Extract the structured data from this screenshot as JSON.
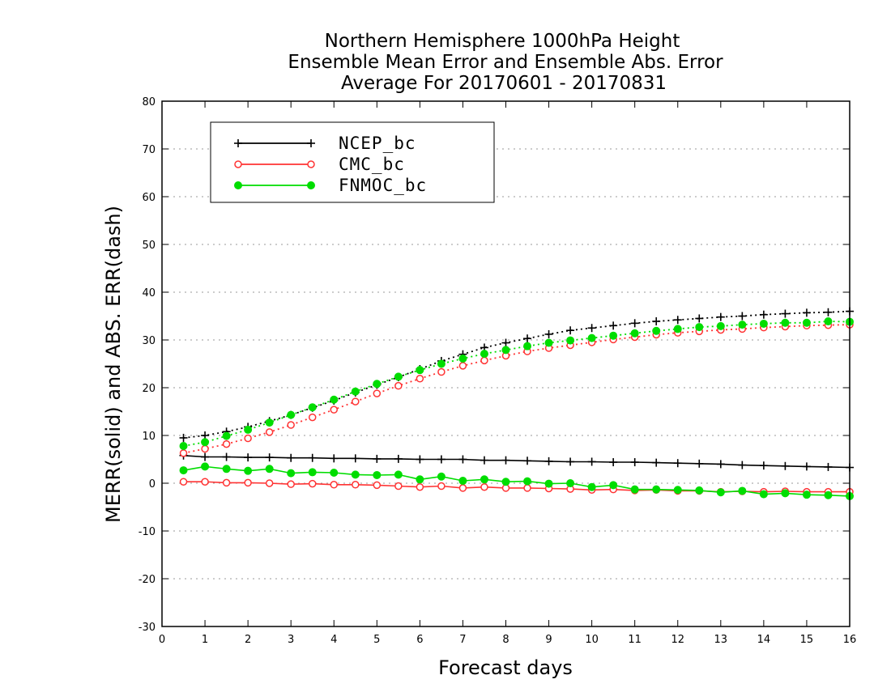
{
  "chart_data": {
    "type": "line",
    "title": [
      "Northern Hemisphere 1000hPa Height",
      "Ensemble Mean Error and Ensemble Abs. Error",
      "Average For 20170601 - 20170831"
    ],
    "xlabel": "Forecast days",
    "ylabel": "MERR(solid) and ABS. ERR(dash)",
    "xlim": [
      0,
      16
    ],
    "ylim": [
      -30,
      80
    ],
    "xticks": [
      "0",
      "1",
      "2",
      "3",
      "4",
      "5",
      "6",
      "7",
      "8",
      "9",
      "10",
      "11",
      "12",
      "13",
      "14",
      "15",
      "16"
    ],
    "yticks": [
      "-30",
      "-20",
      "-10",
      "0",
      "10",
      "20",
      "30",
      "40",
      "50",
      "60",
      "70",
      "80"
    ],
    "grid": "dotted horizontal",
    "legend_position": "top-left",
    "x": [
      0.5,
      1,
      1.5,
      2,
      2.5,
      3,
      3.5,
      4,
      4.5,
      5,
      5.5,
      6,
      6.5,
      7,
      7.5,
      8,
      8.5,
      9,
      9.5,
      10,
      10.5,
      11,
      11.5,
      12,
      12.5,
      13,
      13.5,
      14,
      14.5,
      15,
      15.5,
      16
    ],
    "series": [
      {
        "name": "NCEP_bc",
        "color": "#000000",
        "marker": "plus",
        "merr": [
          5.8,
          5.5,
          5.5,
          5.4,
          5.4,
          5.3,
          5.3,
          5.2,
          5.2,
          5.1,
          5.1,
          5.0,
          5.0,
          5.0,
          4.8,
          4.8,
          4.7,
          4.6,
          4.5,
          4.5,
          4.4,
          4.4,
          4.3,
          4.2,
          4.1,
          4.0,
          3.8,
          3.7,
          3.6,
          3.5,
          3.4,
          3.3
        ],
        "abs_err": [
          9.5,
          10.0,
          10.8,
          11.8,
          13.0,
          14.3,
          15.8,
          17.3,
          19.0,
          20.6,
          22.2,
          23.9,
          25.6,
          27.0,
          28.4,
          29.4,
          30.3,
          31.2,
          32.0,
          32.5,
          33.0,
          33.5,
          33.9,
          34.2,
          34.5,
          34.8,
          35.0,
          35.3,
          35.5,
          35.7,
          35.8,
          36.0
        ]
      },
      {
        "name": "CMC_bc",
        "color": "#ff3333",
        "marker": "open-circle",
        "merr": [
          0.3,
          0.3,
          0.1,
          0.1,
          0.0,
          -0.2,
          -0.1,
          -0.3,
          -0.3,
          -0.4,
          -0.6,
          -0.8,
          -0.6,
          -1.0,
          -0.8,
          -1.0,
          -1.0,
          -1.1,
          -1.2,
          -1.4,
          -1.3,
          -1.5,
          -1.4,
          -1.6,
          -1.6,
          -1.8,
          -1.7,
          -1.8,
          -1.7,
          -1.8,
          -1.8,
          -1.8
        ],
        "abs_err": [
          6.3,
          7.2,
          8.2,
          9.4,
          10.7,
          12.2,
          13.8,
          15.4,
          17.1,
          18.8,
          20.4,
          21.9,
          23.3,
          24.6,
          25.7,
          26.7,
          27.6,
          28.3,
          28.9,
          29.5,
          30.1,
          30.6,
          31.1,
          31.5,
          31.8,
          32.1,
          32.3,
          32.6,
          32.8,
          33.0,
          33.1,
          33.2
        ]
      },
      {
        "name": "FNMOC_bc",
        "color": "#00dd00",
        "marker": "filled-circle",
        "merr": [
          2.7,
          3.5,
          3.0,
          2.6,
          3.0,
          2.1,
          2.3,
          2.2,
          1.8,
          1.7,
          1.8,
          0.8,
          1.4,
          0.5,
          0.8,
          0.3,
          0.4,
          -0.1,
          0.0,
          -0.8,
          -0.4,
          -1.3,
          -1.3,
          -1.4,
          -1.5,
          -1.9,
          -1.6,
          -2.3,
          -2.1,
          -2.4,
          -2.5,
          -2.7
        ],
        "abs_err": [
          7.8,
          8.6,
          9.9,
          11.2,
          12.7,
          14.3,
          15.9,
          17.5,
          19.2,
          20.8,
          22.3,
          23.7,
          25.0,
          26.1,
          27.1,
          27.9,
          28.7,
          29.4,
          29.9,
          30.4,
          30.9,
          31.4,
          31.9,
          32.3,
          32.7,
          32.9,
          33.2,
          33.4,
          33.6,
          33.6,
          33.9,
          33.8
        ]
      }
    ]
  }
}
